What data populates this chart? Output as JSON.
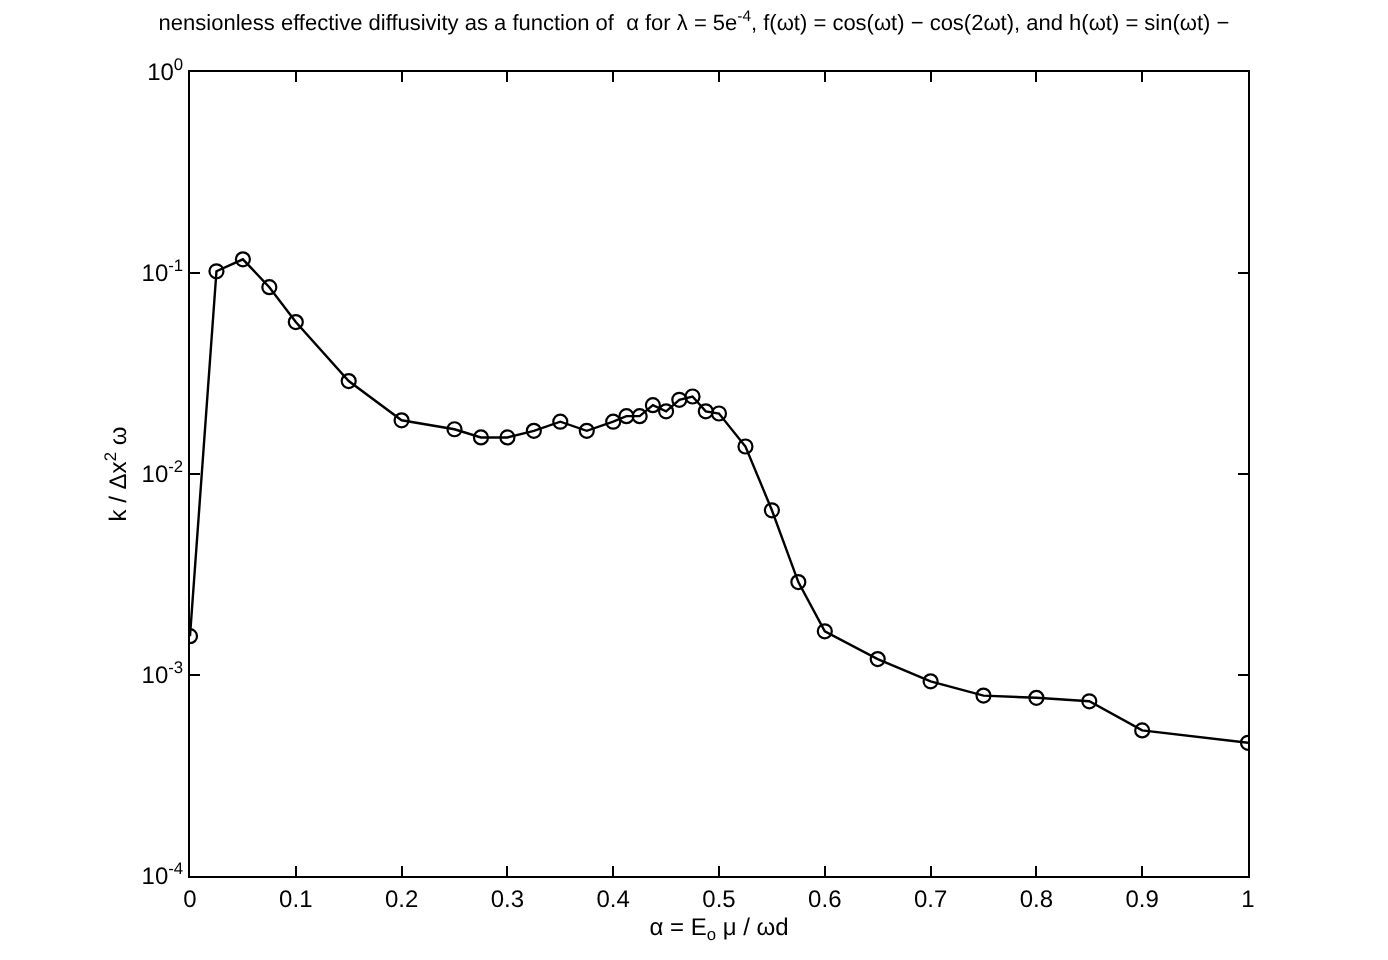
{
  "chart_data": {
    "type": "line",
    "title": "nensionless effective diffusivity as a function of  α for λ = 5e$^{-4}$, f(ωt) = cos(ωt) − cos(2ωt), and h(ωt) = sin(ωt) −",
    "xlabel": "α = E$_{o}$ μ / ωd",
    "ylabel": "k / Δx$^{2}$ ω",
    "x": [
      0,
      0.025,
      0.05,
      0.075,
      0.1,
      0.15,
      0.2,
      0.25,
      0.275,
      0.3,
      0.325,
      0.35,
      0.375,
      0.4,
      0.4125,
      0.425,
      0.4375,
      0.45,
      0.4625,
      0.475,
      0.4875,
      0.5,
      0.525,
      0.55,
      0.575,
      0.6,
      0.65,
      0.7,
      0.75,
      0.8,
      0.85,
      0.9,
      1
    ],
    "series": [
      {
        "color": "#000000",
        "values": [
          0.00156,
          0.102,
          0.117,
          0.085,
          0.057,
          0.029,
          0.0185,
          0.0167,
          0.0152,
          0.0152,
          0.0164,
          0.0182,
          0.0164,
          0.0182,
          0.0194,
          0.0194,
          0.022,
          0.0205,
          0.0234,
          0.0243,
          0.0205,
          0.02,
          0.0137,
          0.0066,
          0.0029,
          0.00165,
          0.0012,
          0.00093,
          0.00079,
          0.00077,
          0.00074,
          0.00053,
          0.00046
        ]
      }
    ],
    "xlim": [
      0,
      1
    ],
    "xticks": [
      0,
      0.1,
      0.2,
      0.3,
      0.4,
      0.5,
      0.6,
      0.7,
      0.8,
      0.9,
      1
    ],
    "ylim": [
      0.0001,
      1
    ],
    "yticks": [
      {
        "value": 0.0001,
        "label": "10$^{-4}$"
      },
      {
        "value": 0.001,
        "label": "10$^{-3}$"
      },
      {
        "value": 0.01,
        "label": "10$^{-2}$"
      },
      {
        "value": 0.1,
        "label": "10$^{-1}$"
      },
      {
        "value": 1,
        "label": "10$^{0}$"
      }
    ],
    "log": "y",
    "marker": "circle",
    "line_style": "solid"
  }
}
